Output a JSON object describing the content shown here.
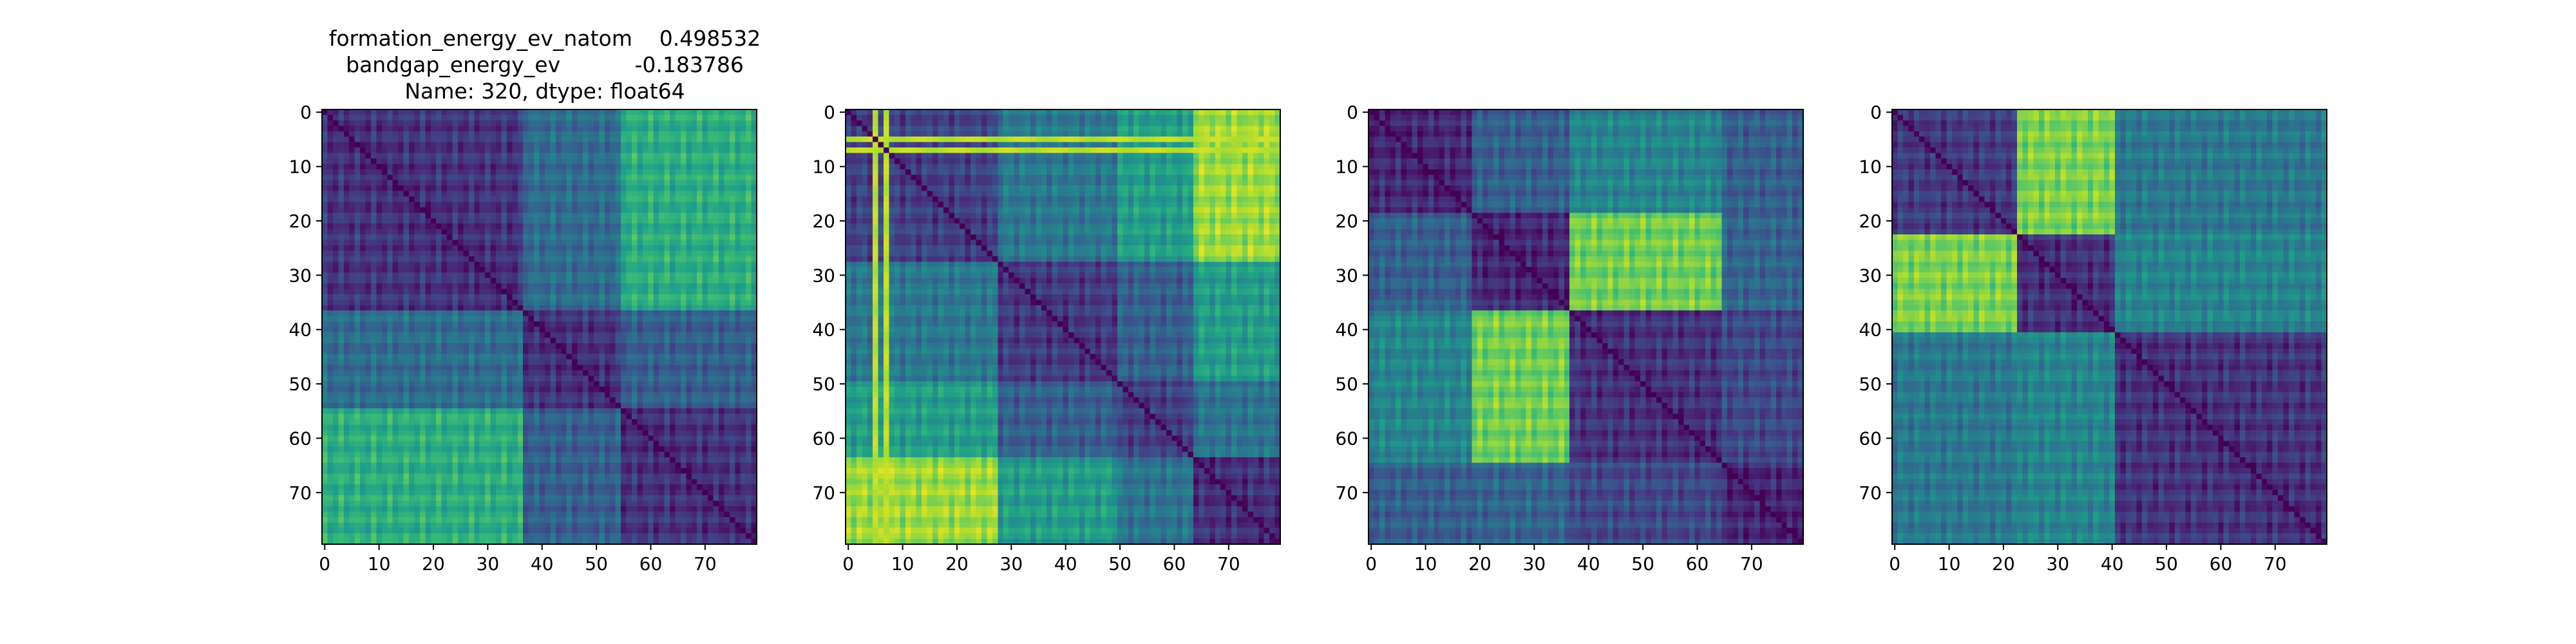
{
  "figure": {
    "title_lines": [
      "formation_energy_ev_natom    0.498532",
      "bandgap_energy_ev           -0.183786",
      "Name: 320, dtype: float64"
    ]
  },
  "chart_data": [
    {
      "type": "heatmap",
      "colormap": "viridis",
      "rows": 80,
      "cols": 80,
      "title": "formation_energy_ev_natom    0.498532\nbandgap_energy_ev           -0.183786\nName: 320, dtype: float64",
      "xticks": [
        0,
        10,
        20,
        30,
        40,
        50,
        60,
        70
      ],
      "yticks": [
        0,
        10,
        20,
        30,
        40,
        50,
        60,
        70
      ],
      "xlim": [
        0,
        79
      ],
      "ylim": [
        79,
        0
      ],
      "diagonal": 0,
      "groups": [
        [
          0,
          37
        ],
        [
          37,
          55
        ],
        [
          55,
          80
        ]
      ],
      "block_values": [
        [
          0.15,
          0.35,
          0.62
        ],
        [
          0.35,
          0.15,
          0.3
        ],
        [
          0.62,
          0.3,
          0.15
        ]
      ],
      "stripe_value": null,
      "stripe_indices": [],
      "texture": 0.05
    },
    {
      "type": "heatmap",
      "colormap": "viridis",
      "rows": 80,
      "cols": 80,
      "xticks": [
        0,
        10,
        20,
        30,
        40,
        50,
        60,
        70
      ],
      "yticks": [
        0,
        10,
        20,
        30,
        40,
        50,
        60,
        70
      ],
      "xlim": [
        0,
        79
      ],
      "ylim": [
        79,
        0
      ],
      "diagonal": 0,
      "groups": [
        [
          0,
          28
        ],
        [
          28,
          50
        ],
        [
          50,
          64
        ],
        [
          64,
          80
        ]
      ],
      "block_values": [
        [
          0.2,
          0.4,
          0.55,
          0.85
        ],
        [
          0.4,
          0.18,
          0.3,
          0.55
        ],
        [
          0.55,
          0.3,
          0.2,
          0.38
        ],
        [
          0.85,
          0.55,
          0.38,
          0.15
        ]
      ],
      "stripe_value": 0.9,
      "stripe_indices": [
        5,
        7
      ],
      "texture": 0.05
    },
    {
      "type": "heatmap",
      "colormap": "viridis",
      "rows": 80,
      "cols": 80,
      "xticks": [
        0,
        10,
        20,
        30,
        40,
        50,
        60,
        70
      ],
      "yticks": [
        0,
        10,
        20,
        30,
        40,
        50,
        60,
        70
      ],
      "xlim": [
        0,
        79
      ],
      "ylim": [
        79,
        0
      ],
      "diagonal": 0,
      "groups": [
        [
          0,
          19
        ],
        [
          19,
          37
        ],
        [
          37,
          65
        ],
        [
          65,
          80
        ]
      ],
      "block_values": [
        [
          0.12,
          0.3,
          0.45,
          0.3
        ],
        [
          0.3,
          0.12,
          0.78,
          0.32
        ],
        [
          0.45,
          0.78,
          0.15,
          0.22
        ],
        [
          0.3,
          0.32,
          0.22,
          0.12
        ]
      ],
      "stripe_value": null,
      "stripe_indices": [],
      "texture": 0.05
    },
    {
      "type": "heatmap",
      "colormap": "viridis",
      "rows": 80,
      "cols": 80,
      "xticks": [
        0,
        10,
        20,
        30,
        40,
        50,
        60,
        70
      ],
      "yticks": [
        0,
        10,
        20,
        30,
        40,
        50,
        60,
        70
      ],
      "xlim": [
        0,
        79
      ],
      "ylim": [
        79,
        0
      ],
      "diagonal": 0,
      "groups": [
        [
          0,
          23
        ],
        [
          23,
          41
        ],
        [
          41,
          80
        ]
      ],
      "block_values": [
        [
          0.18,
          0.8,
          0.4
        ],
        [
          0.8,
          0.15,
          0.45
        ],
        [
          0.4,
          0.45,
          0.15
        ]
      ],
      "stripe_value": null,
      "stripe_indices": [],
      "texture": 0.05
    }
  ]
}
